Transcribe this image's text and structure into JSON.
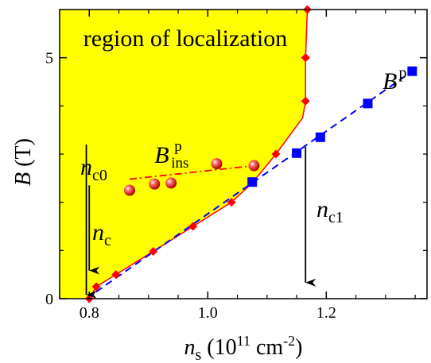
{
  "chart_data": {
    "type": "scatter",
    "xlim": [
      0.75,
      1.37
    ],
    "ylim": [
      0,
      6
    ],
    "x_ticks": [
      {
        "value": 0.8,
        "label": "0.8"
      },
      {
        "value": 1.0,
        "label": "1.0"
      },
      {
        "value": 1.2,
        "label": "1.2"
      }
    ],
    "y_ticks": [
      {
        "value": 0,
        "label": "0"
      },
      {
        "value": 5,
        "label": "5"
      }
    ],
    "x_minor_ticks": [
      0.75,
      0.85,
      0.9,
      0.95,
      1.05,
      1.1,
      1.15,
      1.25,
      1.3,
      1.35
    ],
    "y_minor_ticks": [
      1,
      2,
      3,
      4
    ],
    "xlabel": {
      "main": "n",
      "sub": "s",
      "rest_open": " (10",
      "sup": "11",
      "rest_unit": " cm",
      "sup2": "-2",
      "rest_close": ")"
    },
    "ylabel": {
      "main": "B",
      "rest": " (T)"
    },
    "region": {
      "label": "region of localization",
      "fill_color": "#ffff00",
      "boundary_color": "#ff0000",
      "boundary": [
        {
          "x": 0.8,
          "y": 0.0
        },
        {
          "x": 0.812,
          "y": 0.25
        },
        {
          "x": 0.845,
          "y": 0.5
        },
        {
          "x": 0.908,
          "y": 0.98
        },
        {
          "x": 0.975,
          "y": 1.5
        },
        {
          "x": 1.04,
          "y": 2.0
        },
        {
          "x": 1.075,
          "y": 2.4
        },
        {
          "x": 1.115,
          "y": 3.0
        },
        {
          "x": 1.16,
          "y": 3.75
        },
        {
          "x": 1.165,
          "y": 4.1
        },
        {
          "x": 1.165,
          "y": 5.0
        },
        {
          "x": 1.168,
          "y": 6.0
        }
      ]
    },
    "series": [
      {
        "name": "B^p",
        "marker": "square",
        "color": "#0000ff",
        "line": "dashed",
        "x": [
          1.075,
          1.15,
          1.19,
          1.27,
          1.345
        ],
        "y": [
          2.42,
          3.02,
          3.35,
          4.05,
          4.72
        ]
      },
      {
        "name": "B^p_ins",
        "marker": "sphere",
        "color": "#ff0000",
        "line": "dash-dot",
        "x": [
          0.868,
          0.91,
          0.938,
          1.015,
          1.078
        ],
        "y": [
          2.25,
          2.38,
          2.4,
          2.8,
          2.76
        ]
      },
      {
        "name": "boundary",
        "marker": "diamond",
        "color": "#ff0000",
        "line": "solid",
        "x": [
          0.8,
          0.812,
          0.845,
          0.908,
          0.975,
          1.04,
          1.115,
          1.165,
          1.165,
          1.165,
          1.168
        ],
        "y": [
          0.0,
          0.25,
          0.5,
          0.98,
          1.5,
          2.0,
          3.0,
          4.1,
          5.0,
          5.0,
          6.0
        ]
      }
    ],
    "blue_dashed_line": {
      "x0": 0.795,
      "y0": 0.0,
      "x1": 1.345,
      "y1": 4.72
    },
    "red_dashdot_line": {
      "x0": 0.868,
      "y0": 2.48,
      "x1": 1.078,
      "y1": 2.76
    },
    "annotations": {
      "Bp": {
        "main": "B",
        "sup": "p",
        "x": 1.295,
        "y": 4.35
      },
      "Bins": {
        "main": "B",
        "sub": "ins",
        "sup": "p",
        "x": 0.91,
        "y": 2.82
      },
      "nc0": {
        "main": "n",
        "sub": "c0",
        "x": 0.795,
        "arrow_from": 3.2,
        "arrow_to": 0.05
      },
      "nc": {
        "main": "n",
        "sub": "c",
        "x": 0.8,
        "arrow_from": 2.35,
        "arrow_to": 0.55
      },
      "nc1": {
        "main": "n",
        "sub": "c1",
        "x": 1.165,
        "arrow_from": 3.15,
        "arrow_to": 0.3
      }
    }
  }
}
